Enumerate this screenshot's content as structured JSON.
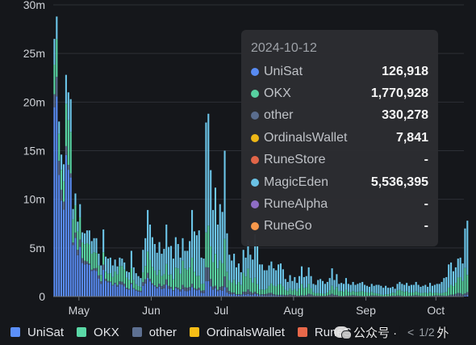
{
  "chart_data": {
    "type": "bar",
    "stacked": true,
    "title": "",
    "xlabel": "",
    "ylabel": "",
    "ylim": [
      0,
      30000000
    ],
    "yticks": [
      "0",
      "5m",
      "10m",
      "15m",
      "20m",
      "25m",
      "30m"
    ],
    "xticks": [
      {
        "label": "May",
        "date": "2024-05-01"
      },
      {
        "label": "Jun",
        "date": "2024-06-01"
      },
      {
        "label": "Jul",
        "date": "2024-07-01"
      },
      {
        "label": "Aug",
        "date": "2024-08-01"
      },
      {
        "label": "Sep",
        "date": "2024-09-01"
      },
      {
        "label": "Oct",
        "date": "2024-10-01"
      }
    ],
    "x_range": [
      "2024-04-20",
      "2024-10-13"
    ],
    "grid": "horizontal",
    "legend_position": "bottom",
    "series_names": [
      "UniSat",
      "OKX",
      "other",
      "OrdinalsWallet",
      "RuneS"
    ],
    "series_colors": {
      "UniSat": "#5b8ff9",
      "OKX": "#5ad8a6",
      "other": "#5d7092",
      "OrdinalsWallet": "#f6bd16",
      "RuneStore": "#e8684a",
      "MagicEden": "#6dc8ec",
      "RuneAlpha": "#9270ca",
      "RuneGo": "#ff9d4d"
    },
    "daily_total_m": [
      26.5,
      28.8,
      18.0,
      14.6,
      13.6,
      22.8,
      21.0,
      20.3,
      9.0,
      10.6,
      7.7,
      9.5,
      6.6,
      6.5,
      6.8,
      6.8,
      5.7,
      6.0,
      6.0,
      4.4,
      3.2,
      6.9,
      4.1,
      3.9,
      4.0,
      3.2,
      3.8,
      3.1,
      4.0,
      3.9,
      3.5,
      2.6,
      2.5,
      4.7,
      3.0,
      2.4,
      2.1,
      1.9,
      4.8,
      6.0,
      8.9,
      7.4,
      6.1,
      5.4,
      4.5,
      5.6,
      4.4,
      4.9,
      7.4,
      5.1,
      5.2,
      3.9,
      6.1,
      5.4,
      4.0,
      6.0,
      4.7,
      4.7,
      5.7,
      8.9,
      6.7,
      6.3,
      6.8,
      4.0,
      3.9,
      17.9,
      18.8,
      13.0,
      8.9,
      11.2,
      7.4,
      9.5,
      8.7,
      15.0,
      6.5,
      4.3,
      3.7,
      4.4,
      3.0,
      3.4,
      2.5,
      4.8,
      4.0,
      5.8,
      4.3,
      3.8,
      6.4,
      5.2,
      3.3,
      3.3,
      2.7,
      2.7,
      3.2,
      3.6,
      2.9,
      2.7,
      3.3,
      3.4,
      2.8,
      1.8,
      1.5,
      2.2,
      1.6,
      2.0,
      1.4,
      2.1,
      3.1,
      2.0,
      2.1,
      3.0,
      2.1,
      1.3,
      1.2,
      1.7,
      1.8,
      1.6,
      1.3,
      1.5,
      1.9,
      2.9,
      1.7,
      2.3,
      1.3,
      1.4,
      1.3,
      1.9,
      1.3,
      1.2,
      1.5,
      1.2,
      1.3,
      1.4,
      1.5,
      1.2,
      1.1,
      1.0,
      1.3,
      1.1,
      1.2,
      1.2,
      1.1,
      0.9,
      1.1,
      0.9,
      0.9,
      1.0,
      0.8,
      1.3,
      1.5,
      1.3,
      1.2,
      1.4,
      1.1,
      1.2,
      1.2,
      1.5,
      1.2,
      1.0,
      1.1,
      1.2,
      1.0,
      1.4,
      1.1,
      1.2,
      1.3,
      1.3,
      1.5,
      1.9,
      2.0,
      3.3,
      3.5,
      2.6,
      3.0,
      3.9,
      4.0,
      3.4,
      7.0,
      7.8
    ],
    "tooltip": {
      "date": "2024-10-12",
      "rows": [
        {
          "name": "UniSat",
          "value": "126,918",
          "color": "#5b8ff9"
        },
        {
          "name": "OKX",
          "value": "1,770,928",
          "color": "#5ad8a6"
        },
        {
          "name": "other",
          "value": "330,278",
          "color": "#5d7092"
        },
        {
          "name": "OrdinalsWallet",
          "value": "7,841",
          "color": "#f6bd16"
        },
        {
          "name": "RuneStore",
          "value": "-",
          "color": "#e8684a"
        },
        {
          "name": "MagicEden",
          "value": "5,536,395",
          "color": "#6dc8ec"
        },
        {
          "name": "RuneAlpha",
          "value": "-",
          "color": "#9270ca"
        },
        {
          "name": "RuneGo",
          "value": "-",
          "color": "#ff9d4d"
        }
      ]
    }
  },
  "legend": {
    "items": [
      {
        "label": "UniSat",
        "color": "#5b8ff9"
      },
      {
        "label": "OKX",
        "color": "#5ad8a6"
      },
      {
        "label": "other",
        "color": "#5d7092"
      },
      {
        "label": "OrdinalsWallet",
        "color": "#f6bd16"
      },
      {
        "label": "RuneS",
        "color": "#e8684a"
      }
    ],
    "pager": {
      "prev": "<",
      "page": "1/2"
    }
  },
  "watermark": {
    "text": "公众号 · 话李话外"
  }
}
